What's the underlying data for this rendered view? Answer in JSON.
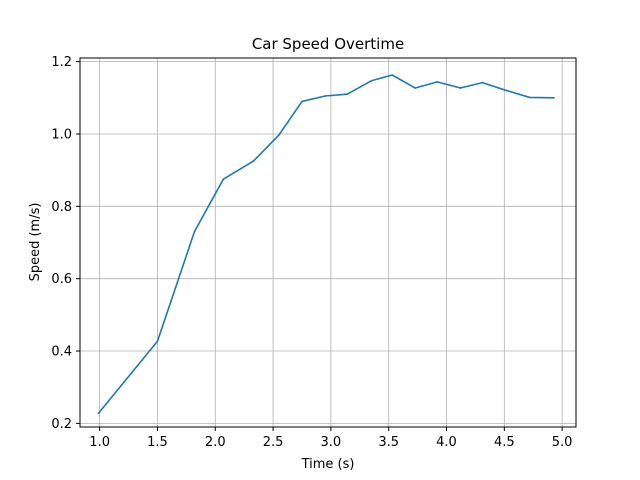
{
  "chart_data": {
    "type": "line",
    "title": "Car Speed Overtime",
    "xlabel": "Time (s)",
    "ylabel": "Speed (m/s)",
    "xlim": [
      0.83,
      5.12
    ],
    "ylim": [
      0.19,
      1.21
    ],
    "xticks": [
      1.0,
      1.5,
      2.0,
      2.5,
      3.0,
      3.5,
      4.0,
      4.5,
      5.0
    ],
    "xtick_labels": [
      "1.0",
      "1.5",
      "2.0",
      "2.5",
      "3.0",
      "3.5",
      "4.0",
      "4.5",
      "5.0"
    ],
    "yticks": [
      0.2,
      0.4,
      0.6,
      0.8,
      1.0,
      1.2
    ],
    "ytick_labels": [
      "0.2",
      "0.4",
      "0.6",
      "0.8",
      "1.0",
      "1.2"
    ],
    "grid": true,
    "color": "#1f77b4",
    "series": [
      {
        "x": [
          0.99,
          1.5,
          1.82,
          2.07,
          2.33,
          2.55,
          2.75,
          2.95,
          3.14,
          3.35,
          3.53,
          3.73,
          3.92,
          4.12,
          4.31,
          4.52,
          4.72,
          4.93
        ],
        "y": [
          0.228,
          0.427,
          0.73,
          0.875,
          0.925,
          0.997,
          1.09,
          1.105,
          1.11,
          1.147,
          1.163,
          1.127,
          1.144,
          1.127,
          1.142,
          1.12,
          1.101,
          1.1
        ]
      }
    ]
  }
}
